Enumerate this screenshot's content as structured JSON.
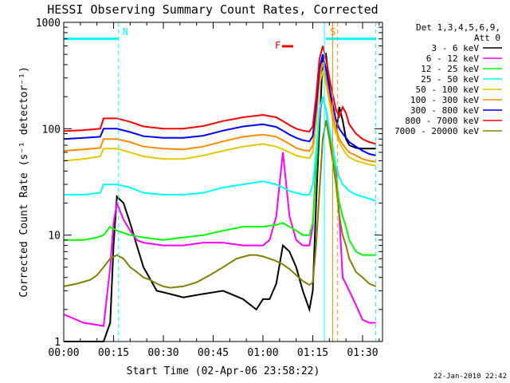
{
  "chart_data": {
    "type": "line",
    "title": "HESSI Observing Summary Count Rates, Corrected",
    "xlabel": "Start Time (02-Apr-06 23:58:22)",
    "ylabel": "Corrected Count Rate (s⁻¹ detector⁻¹)",
    "y_scale": "log",
    "ylim": [
      1,
      1000
    ],
    "xlim": [
      0,
      96
    ],
    "grid": false,
    "legend_position": "top-right",
    "x_ticks": [
      {
        "value": 0,
        "label": "00:00"
      },
      {
        "value": 15,
        "label": "00:15"
      },
      {
        "value": 30,
        "label": "00:30"
      },
      {
        "value": 45,
        "label": "00:45"
      },
      {
        "value": 60,
        "label": "01:00"
      },
      {
        "value": 75,
        "label": "01:15"
      },
      {
        "value": 90,
        "label": "01:30"
      }
    ],
    "y_ticks": [
      {
        "value": 1,
        "label": "1"
      },
      {
        "value": 10,
        "label": "10"
      },
      {
        "value": 100,
        "label": "100"
      },
      {
        "value": 1000,
        "label": "1000"
      }
    ],
    "legend_header": [
      "Det 1,3,4,5,6,9,",
      "Att 0"
    ],
    "series": [
      {
        "name": "3 - 6 keV",
        "color": "#000000",
        "x": [
          0,
          12,
          14,
          15,
          16,
          18,
          20,
          22,
          24,
          28,
          32,
          36,
          42,
          48,
          54,
          58,
          60,
          62,
          64,
          66,
          68,
          70,
          72,
          74,
          75,
          76,
          77,
          78,
          79,
          80,
          81,
          82,
          83,
          84,
          85,
          86,
          88,
          90,
          92,
          94
        ],
        "values": [
          1,
          1,
          1.5,
          8,
          23,
          20,
          13,
          8,
          5,
          3,
          2.8,
          2.6,
          2.8,
          3,
          2.5,
          2,
          2.5,
          2.5,
          3.5,
          8,
          7,
          5,
          3,
          2,
          3,
          20,
          100,
          450,
          500,
          250,
          120,
          90,
          160,
          120,
          80,
          70,
          66,
          65,
          65,
          65
        ]
      },
      {
        "name": "6 - 12 keV",
        "color": "#ff00ff",
        "x": [
          0,
          6,
          12,
          14,
          15,
          16,
          18,
          20,
          22,
          24,
          30,
          36,
          42,
          48,
          54,
          60,
          62,
          64,
          65,
          66,
          67,
          68,
          70,
          72,
          74,
          75,
          76,
          77,
          78,
          79,
          80,
          81,
          82,
          83,
          84,
          86,
          88,
          90,
          92,
          94
        ],
        "values": [
          1.8,
          1.5,
          1.4,
          5,
          13,
          20,
          14,
          11,
          9,
          8.5,
          8,
          8,
          8.5,
          8.5,
          8,
          8,
          9,
          15,
          30,
          60,
          30,
          15,
          9,
          8,
          8,
          12,
          50,
          130,
          200,
          150,
          90,
          60,
          40,
          15,
          4,
          3,
          2.2,
          1.6,
          1.5,
          1.5
        ]
      },
      {
        "name": "12 - 25 keV",
        "color": "#00ff00",
        "x": [
          0,
          6,
          10,
          12,
          14,
          16,
          18,
          20,
          24,
          30,
          36,
          42,
          48,
          54,
          60,
          64,
          66,
          68,
          70,
          72,
          74,
          75,
          76,
          77,
          78,
          79,
          80,
          81,
          82,
          83,
          84,
          85,
          86,
          88,
          90,
          92,
          94
        ],
        "values": [
          9,
          9,
          9.5,
          10,
          12,
          11,
          10.5,
          10,
          9.5,
          9,
          9.5,
          10,
          11,
          12,
          12,
          12.5,
          13,
          12,
          11,
          10,
          10,
          13,
          40,
          150,
          200,
          150,
          90,
          60,
          35,
          20,
          15,
          12,
          9,
          7,
          6.5,
          6.5,
          6.5
        ]
      },
      {
        "name": "25 - 50 keV",
        "color": "#00ffff",
        "x": [
          0,
          6,
          11,
          12,
          16,
          20,
          24,
          30,
          36,
          42,
          48,
          54,
          60,
          64,
          66,
          68,
          70,
          72,
          74,
          75,
          76,
          77,
          78,
          79,
          80,
          81,
          82,
          83,
          84,
          85,
          86,
          88,
          90,
          92,
          94
        ],
        "values": [
          24,
          24,
          25,
          30,
          30,
          28,
          25,
          24,
          24,
          25,
          28,
          30,
          32,
          30,
          28,
          26,
          25,
          24,
          24,
          30,
          60,
          150,
          200,
          150,
          100,
          70,
          45,
          35,
          30,
          28,
          26,
          24,
          23,
          22,
          21
        ]
      },
      {
        "name": "50 - 100 keV",
        "color": "#e5c800",
        "x": [
          0,
          6,
          11,
          12,
          16,
          20,
          24,
          30,
          36,
          42,
          48,
          54,
          60,
          64,
          66,
          68,
          70,
          72,
          74,
          75,
          76,
          77,
          78,
          79,
          80,
          81,
          82,
          83,
          84,
          85,
          86,
          88,
          90,
          92,
          94
        ],
        "values": [
          50,
          52,
          55,
          65,
          65,
          60,
          55,
          52,
          52,
          56,
          62,
          68,
          72,
          68,
          64,
          60,
          56,
          54,
          53,
          60,
          110,
          260,
          350,
          260,
          180,
          120,
          90,
          75,
          65,
          58,
          54,
          50,
          48,
          46,
          45
        ]
      },
      {
        "name": "100 - 300 keV",
        "color": "#ff8c00",
        "x": [
          0,
          6,
          11,
          12,
          16,
          20,
          24,
          30,
          36,
          42,
          48,
          54,
          60,
          64,
          66,
          68,
          70,
          72,
          74,
          75,
          76,
          77,
          78,
          79,
          80,
          81,
          82,
          83,
          84,
          85,
          86,
          88,
          90,
          92,
          94
        ],
        "values": [
          62,
          64,
          66,
          80,
          80,
          75,
          68,
          65,
          64,
          68,
          76,
          84,
          88,
          84,
          78,
          72,
          66,
          63,
          62,
          70,
          130,
          300,
          420,
          300,
          200,
          140,
          100,
          80,
          72,
          65,
          60,
          56,
          52,
          50,
          49
        ]
      },
      {
        "name": "300 - 800 keV",
        "color": "#0000ff",
        "x": [
          0,
          6,
          11,
          12,
          16,
          20,
          24,
          30,
          36,
          42,
          48,
          54,
          60,
          64,
          66,
          68,
          70,
          72,
          74,
          75,
          76,
          77,
          78,
          79,
          80,
          81,
          82,
          83,
          84,
          85,
          86,
          88,
          90,
          92,
          94
        ],
        "values": [
          80,
          82,
          84,
          100,
          100,
          93,
          85,
          82,
          82,
          86,
          96,
          105,
          110,
          104,
          96,
          88,
          82,
          78,
          76,
          85,
          160,
          360,
          500,
          360,
          240,
          170,
          120,
          100,
          90,
          82,
          75,
          68,
          62,
          58,
          56
        ]
      },
      {
        "name": "800 - 7000 keV",
        "color": "#ff0000",
        "x": [
          0,
          6,
          11,
          12,
          16,
          20,
          24,
          30,
          36,
          42,
          48,
          54,
          60,
          64,
          66,
          68,
          70,
          72,
          74,
          75,
          76,
          77,
          78,
          79,
          80,
          81,
          82,
          83,
          84,
          85,
          86,
          88,
          90,
          92,
          94
        ],
        "values": [
          95,
          97,
          100,
          125,
          125,
          116,
          105,
          100,
          100,
          106,
          118,
          128,
          135,
          128,
          118,
          108,
          100,
          96,
          94,
          105,
          200,
          450,
          600,
          450,
          300,
          210,
          150,
          130,
          160,
          140,
          110,
          90,
          80,
          75,
          72
        ]
      },
      {
        "name": "7000 - 20000 keV",
        "color": "#808000",
        "x": [
          0,
          4,
          8,
          10,
          12,
          14,
          16,
          18,
          20,
          22,
          24,
          26,
          28,
          30,
          32,
          36,
          40,
          44,
          48,
          52,
          56,
          58,
          60,
          62,
          64,
          66,
          68,
          70,
          72,
          74,
          75,
          76,
          77,
          78,
          79,
          80,
          81,
          82,
          83,
          84,
          85,
          86,
          88,
          90,
          92,
          94
        ],
        "values": [
          3.3,
          3.5,
          3.8,
          4.2,
          5,
          6,
          6.5,
          6,
          5,
          4.5,
          4,
          3.8,
          3.5,
          3.3,
          3.2,
          3.3,
          3.6,
          4.2,
          5,
          6,
          6.5,
          6.5,
          6.3,
          6,
          5.7,
          5.3,
          4.8,
          4.2,
          3.7,
          3.4,
          3.6,
          8,
          25,
          80,
          120,
          80,
          50,
          30,
          15,
          10,
          8,
          6,
          4.5,
          4,
          3.5,
          3.3
        ]
      }
    ],
    "annotations": {
      "markers": [
        {
          "label": "N",
          "color": "#00ffff",
          "x": 16.5
        },
        {
          "label": "S",
          "color": "#ff8c00",
          "x": 79
        },
        {
          "label": "F",
          "color": "#ff0000"
        }
      ],
      "segments": [
        {
          "color": "#00ffff",
          "x_from": 0,
          "x_to": 16.5,
          "y": 700
        },
        {
          "color": "#00ffff",
          "x_from": 79,
          "x_to": 94,
          "y": 700
        }
      ],
      "vlines": [
        {
          "x": 16.5,
          "color": "#00ffff",
          "style": "dashed"
        },
        {
          "x": 78.5,
          "color": "#00ffff",
          "style": "solid"
        },
        {
          "x": 81,
          "color": "#ff8c00",
          "style": "solid"
        },
        {
          "x": 82.5,
          "color": "#ff8c00",
          "style": "dashed"
        },
        {
          "x": 94,
          "color": "#00ffff",
          "style": "dashed"
        }
      ]
    }
  },
  "footer": {
    "timestamp": "22-Jan-2010 22:42"
  }
}
